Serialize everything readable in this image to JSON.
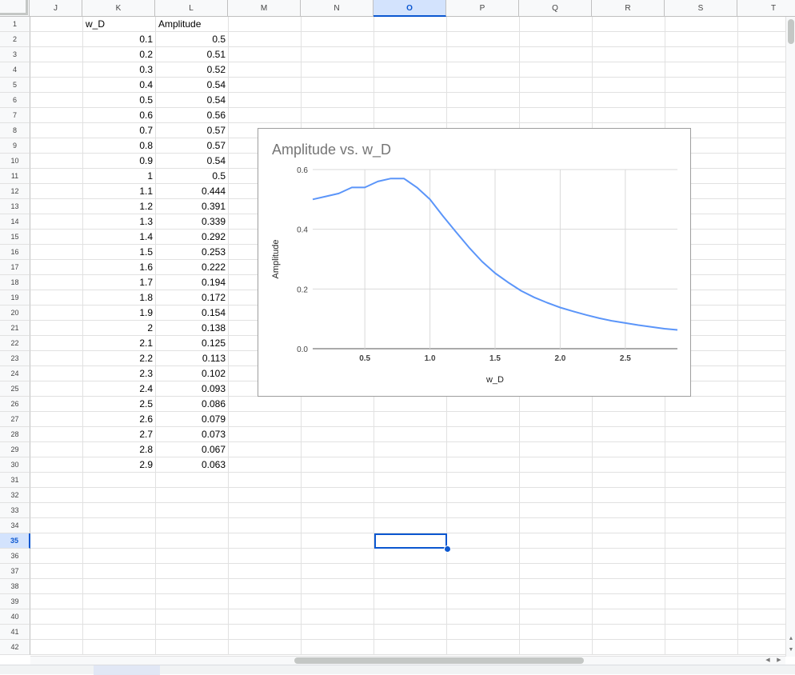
{
  "sheet": {
    "columns": [
      "J",
      "K",
      "L",
      "M",
      "N",
      "O",
      "P",
      "Q",
      "R",
      "S",
      "T"
    ],
    "selected_column": "O",
    "selected_row": 35,
    "row_count": 42,
    "headers": {
      "K": "w_D",
      "L": "Amplitude"
    },
    "table": [
      {
        "row": 2,
        "w_D": "0.1",
        "amp": "0.5"
      },
      {
        "row": 3,
        "w_D": "0.2",
        "amp": "0.51"
      },
      {
        "row": 4,
        "w_D": "0.3",
        "amp": "0.52"
      },
      {
        "row": 5,
        "w_D": "0.4",
        "amp": "0.54"
      },
      {
        "row": 6,
        "w_D": "0.5",
        "amp": "0.54"
      },
      {
        "row": 7,
        "w_D": "0.6",
        "amp": "0.56"
      },
      {
        "row": 8,
        "w_D": "0.7",
        "amp": "0.57"
      },
      {
        "row": 9,
        "w_D": "0.8",
        "amp": "0.57"
      },
      {
        "row": 10,
        "w_D": "0.9",
        "amp": "0.54"
      },
      {
        "row": 11,
        "w_D": "1",
        "amp": "0.5"
      },
      {
        "row": 12,
        "w_D": "1.1",
        "amp": "0.444"
      },
      {
        "row": 13,
        "w_D": "1.2",
        "amp": "0.391"
      },
      {
        "row": 14,
        "w_D": "1.3",
        "amp": "0.339"
      },
      {
        "row": 15,
        "w_D": "1.4",
        "amp": "0.292"
      },
      {
        "row": 16,
        "w_D": "1.5",
        "amp": "0.253"
      },
      {
        "row": 17,
        "w_D": "1.6",
        "amp": "0.222"
      },
      {
        "row": 18,
        "w_D": "1.7",
        "amp": "0.194"
      },
      {
        "row": 19,
        "w_D": "1.8",
        "amp": "0.172"
      },
      {
        "row": 20,
        "w_D": "1.9",
        "amp": "0.154"
      },
      {
        "row": 21,
        "w_D": "2",
        "amp": "0.138"
      },
      {
        "row": 22,
        "w_D": "2.1",
        "amp": "0.125"
      },
      {
        "row": 23,
        "w_D": "2.2",
        "amp": "0.113"
      },
      {
        "row": 24,
        "w_D": "2.3",
        "amp": "0.102"
      },
      {
        "row": 25,
        "w_D": "2.4",
        "amp": "0.093"
      },
      {
        "row": 26,
        "w_D": "2.5",
        "amp": "0.086"
      },
      {
        "row": 27,
        "w_D": "2.6",
        "amp": "0.079"
      },
      {
        "row": 28,
        "w_D": "2.7",
        "amp": "0.073"
      },
      {
        "row": 29,
        "w_D": "2.8",
        "amp": "0.067"
      },
      {
        "row": 30,
        "w_D": "2.9",
        "amp": "0.063"
      }
    ]
  },
  "colors": {
    "series": "#5b95f9",
    "selection": "#0b57d0",
    "gridline": "#e1e1e1"
  },
  "chart_data": {
    "type": "line",
    "title": "Amplitude vs. w_D",
    "xlabel": "w_D",
    "ylabel": "Amplitude",
    "xlim": [
      0.1,
      2.9
    ],
    "ylim": [
      0,
      0.6
    ],
    "xticks": [
      0.5,
      1.0,
      1.5,
      2.0,
      2.5
    ],
    "xtick_labels": [
      "0.5",
      "1.0",
      "1.5",
      "2.0",
      "2.5"
    ],
    "yticks": [
      0,
      0.2,
      0.4,
      0.6
    ],
    "ytick_labels": [
      "0.0",
      "0.2",
      "0.4",
      "0.6"
    ],
    "grid": true,
    "legend": "none",
    "x": [
      0.1,
      0.2,
      0.3,
      0.4,
      0.5,
      0.6,
      0.7,
      0.8,
      0.9,
      1.0,
      1.1,
      1.2,
      1.3,
      1.4,
      1.5,
      1.6,
      1.7,
      1.8,
      1.9,
      2.0,
      2.1,
      2.2,
      2.3,
      2.4,
      2.5,
      2.6,
      2.7,
      2.8,
      2.9
    ],
    "series": [
      {
        "values": [
          0.5,
          0.51,
          0.52,
          0.54,
          0.54,
          0.56,
          0.57,
          0.57,
          0.54,
          0.5,
          0.444,
          0.391,
          0.339,
          0.292,
          0.253,
          0.222,
          0.194,
          0.172,
          0.154,
          0.138,
          0.125,
          0.113,
          0.102,
          0.093,
          0.086,
          0.079,
          0.073,
          0.067,
          0.063
        ]
      }
    ]
  }
}
